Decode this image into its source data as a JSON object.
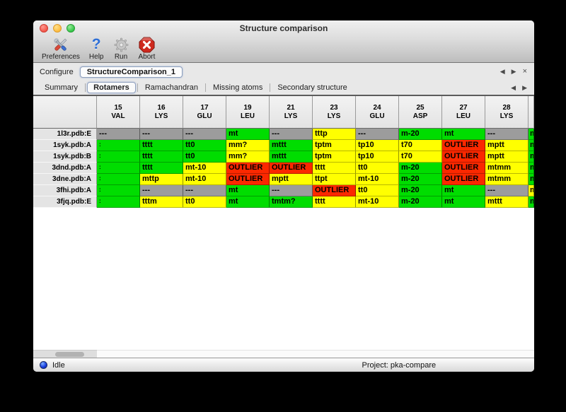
{
  "window": {
    "title": "Structure comparison"
  },
  "toolbar": {
    "items": [
      {
        "label": "Preferences",
        "icon": "tools-icon"
      },
      {
        "label": "Help",
        "icon": "help-icon"
      },
      {
        "label": "Run",
        "icon": "gear-icon"
      },
      {
        "label": "Abort",
        "icon": "abort-icon"
      }
    ]
  },
  "configure": {
    "label": "Configure",
    "value": "StructureComparison_1",
    "nav_prev": "◀",
    "nav_next": "▶",
    "nav_close": "×"
  },
  "tabs": {
    "active": "Rotamers",
    "items": [
      "Summary",
      "Rotamers",
      "Ramachandran",
      "Missing atoms",
      "Secondary structure"
    ],
    "nav_prev": "◀",
    "nav_next": "▶"
  },
  "status_colors": {
    "ok": "#00dd00",
    "warn": "#ffff00",
    "outlier": "#fb2800",
    "na": "#9c9c9c"
  },
  "table": {
    "columns": [
      [
        "15",
        "VAL"
      ],
      [
        "16",
        "LYS"
      ],
      [
        "17",
        "GLU"
      ],
      [
        "19",
        "LEU"
      ],
      [
        "21",
        "LYS"
      ],
      [
        "23",
        "LYS"
      ],
      [
        "24",
        "GLU"
      ],
      [
        "25",
        "ASP"
      ],
      [
        "27",
        "LEU"
      ],
      [
        "28",
        "LYS"
      ]
    ],
    "rows": [
      {
        "label": "1l3r.pdb:E",
        "cells": [
          [
            "---",
            "na"
          ],
          [
            "---",
            "na"
          ],
          [
            "---",
            "na"
          ],
          [
            "mt",
            "ok"
          ],
          [
            "---",
            "na"
          ],
          [
            "tttp",
            "warn"
          ],
          [
            "---",
            "na"
          ],
          [
            "m-20",
            "ok"
          ],
          [
            "mt",
            "ok"
          ],
          [
            "---",
            "na"
          ]
        ],
        "edge": [
          "m",
          "ok"
        ]
      },
      {
        "label": "1syk.pdb:A",
        "cells": [
          [
            ":",
            "ok"
          ],
          [
            "tttt",
            "ok"
          ],
          [
            "tt0",
            "ok"
          ],
          [
            "mm?",
            "warn"
          ],
          [
            "mttt",
            "ok"
          ],
          [
            "tptm",
            "warn"
          ],
          [
            "tp10",
            "warn"
          ],
          [
            "t70",
            "warn"
          ],
          [
            "OUTLIER",
            "outlier"
          ],
          [
            "mptt",
            "warn"
          ]
        ],
        "edge": [
          "m",
          "ok"
        ]
      },
      {
        "label": "1syk.pdb:B",
        "cells": [
          [
            ":",
            "ok"
          ],
          [
            "tttt",
            "ok"
          ],
          [
            "tt0",
            "ok"
          ],
          [
            "mm?",
            "warn"
          ],
          [
            "mttt",
            "ok"
          ],
          [
            "tptm",
            "warn"
          ],
          [
            "tp10",
            "warn"
          ],
          [
            "t70",
            "warn"
          ],
          [
            "OUTLIER",
            "outlier"
          ],
          [
            "mptt",
            "warn"
          ]
        ],
        "edge": [
          "m",
          "ok"
        ]
      },
      {
        "label": "3dnd.pdb:A",
        "cells": [
          [
            ":",
            "ok"
          ],
          [
            "tttt",
            "ok"
          ],
          [
            "mt-10",
            "warn"
          ],
          [
            "OUTLIER",
            "outlier"
          ],
          [
            "OUTLIER",
            "outlier"
          ],
          [
            "tttt",
            "warn"
          ],
          [
            "tt0",
            "warn"
          ],
          [
            "m-20",
            "ok"
          ],
          [
            "OUTLIER",
            "outlier"
          ],
          [
            "mtmm",
            "warn"
          ]
        ],
        "edge": [
          "m",
          "ok"
        ]
      },
      {
        "label": "3dne.pdb:A",
        "cells": [
          [
            ":",
            "ok"
          ],
          [
            "mttp",
            "warn"
          ],
          [
            "mt-10",
            "warn"
          ],
          [
            "OUTLIER",
            "outlier"
          ],
          [
            "mptt",
            "warn"
          ],
          [
            "ttpt",
            "warn"
          ],
          [
            "mt-10",
            "warn"
          ],
          [
            "m-20",
            "ok"
          ],
          [
            "OUTLIER",
            "outlier"
          ],
          [
            "mtmm",
            "warn"
          ]
        ],
        "edge": [
          "m",
          "ok"
        ]
      },
      {
        "label": "3fhi.pdb:A",
        "cells": [
          [
            ":",
            "ok"
          ],
          [
            "---",
            "na"
          ],
          [
            "---",
            "na"
          ],
          [
            "mt",
            "ok"
          ],
          [
            "---",
            "na"
          ],
          [
            "OUTLIER",
            "outlier"
          ],
          [
            "tt0",
            "warn"
          ],
          [
            "m-20",
            "ok"
          ],
          [
            "mt",
            "ok"
          ],
          [
            "---",
            "na"
          ]
        ],
        "edge": [
          "m",
          "warn"
        ]
      },
      {
        "label": "3fjq.pdb:E",
        "cells": [
          [
            ":",
            "ok"
          ],
          [
            "tttm",
            "warn"
          ],
          [
            "tt0",
            "warn"
          ],
          [
            "mt",
            "ok"
          ],
          [
            "tmtm?",
            "ok"
          ],
          [
            "tttt",
            "warn"
          ],
          [
            "mt-10",
            "warn"
          ],
          [
            "m-20",
            "ok"
          ],
          [
            "mt",
            "ok"
          ],
          [
            "mttt",
            "warn"
          ]
        ],
        "edge": [
          "m",
          "ok"
        ]
      }
    ]
  },
  "statusbar": {
    "status": "Idle",
    "project": "Project: pka-compare"
  }
}
